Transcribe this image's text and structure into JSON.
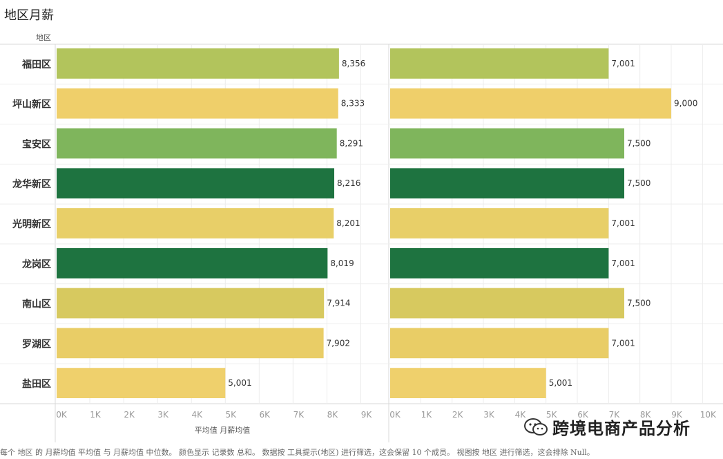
{
  "title": "地区月薪",
  "row_header": "地区",
  "x_axis_title": "平均值 月薪均值",
  "footnote": "每个 地区 的 月薪均值 平均值 与 月薪均值 中位数。 颜色显示 记录数 总和。 数据按 工具提示(地区) 进行筛选，这会保留 10 个成员。 视图按 地区 进行筛选，这会排除 Null。",
  "watermark": {
    "text": "跨境电商产品分析",
    "icon": "wechat-icon"
  },
  "chart_data": [
    {
      "type": "bar",
      "orientation": "horizontal",
      "categories": [
        "福田区",
        "坪山新区",
        "宝安区",
        "龙华新区",
        "光明新区",
        "龙岗区",
        "南山区",
        "罗湖区",
        "盐田区"
      ],
      "values": [
        8356,
        8333,
        8291,
        8216,
        8201,
        8019,
        7914,
        7902,
        5001
      ],
      "value_labels": [
        "8,356",
        "8,333",
        "8,291",
        "8,216",
        "8,201",
        "8,019",
        "7,914",
        "7,902",
        "5,001"
      ],
      "colors": [
        "#b2c45c",
        "#efcf6a",
        "#7fb55c",
        "#1e7340",
        "#e8cf68",
        "#1e7340",
        "#d7c95f",
        "#e9cd66",
        "#efd06c"
      ],
      "xlim": [
        0,
        9500
      ],
      "ticks": [
        0,
        1000,
        2000,
        3000,
        4000,
        5000,
        6000,
        7000,
        8000,
        9000
      ],
      "tick_labels": [
        "0K",
        "1K",
        "2K",
        "3K",
        "4K",
        "5K",
        "6K",
        "7K",
        "8K",
        "9K"
      ],
      "xlabel": "平均值 月薪均值",
      "grid": true
    },
    {
      "type": "bar",
      "orientation": "horizontal",
      "categories": [
        "福田区",
        "坪山新区",
        "宝安区",
        "龙华新区",
        "光明新区",
        "龙岗区",
        "南山区",
        "罗湖区",
        "盐田区"
      ],
      "values": [
        7001,
        9000,
        7500,
        7500,
        7001,
        7001,
        7500,
        7001,
        5001
      ],
      "value_labels": [
        "7,001",
        "9,000",
        "7,500",
        "7,500",
        "7,001",
        "7,001",
        "7,500",
        "7,001",
        "5,001"
      ],
      "colors": [
        "#b2c45c",
        "#efcf6a",
        "#7fb55c",
        "#1e7340",
        "#e8cf68",
        "#1e7340",
        "#d7c95f",
        "#e9cd66",
        "#efd06c"
      ],
      "xlim": [
        0,
        10500
      ],
      "ticks": [
        0,
        1000,
        2000,
        3000,
        4000,
        5000,
        6000,
        7000,
        8000,
        9000,
        10000
      ],
      "tick_labels": [
        "0K",
        "1K",
        "2K",
        "3K",
        "4K",
        "5K",
        "6K",
        "7K",
        "8K",
        "9K",
        "10K"
      ],
      "xlabel": "",
      "grid": true
    }
  ]
}
